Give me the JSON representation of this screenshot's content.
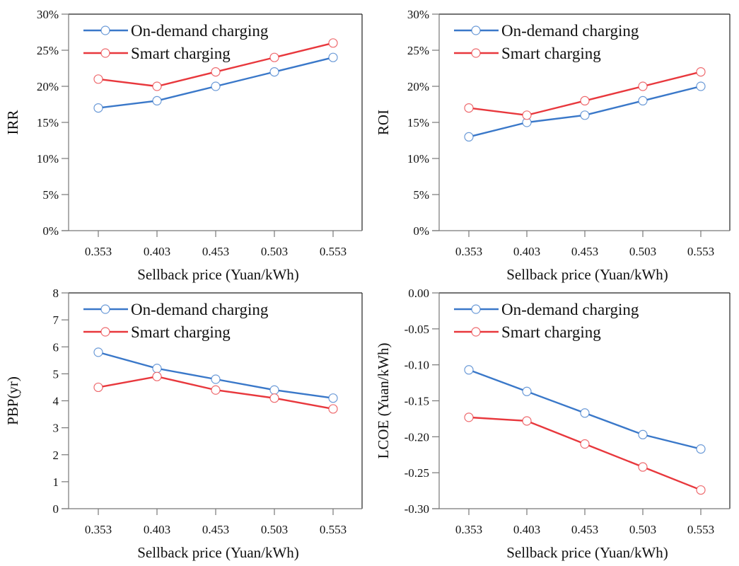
{
  "chart_data": [
    {
      "type": "line",
      "id": "irr",
      "title": "",
      "xlabel": "Sellback price (Yuan/kWh)",
      "ylabel": "IRR",
      "categories": [
        "0.353",
        "0.403",
        "0.453",
        "0.503",
        "0.553"
      ],
      "ylim": [
        0,
        0.3
      ],
      "yticks": [
        0,
        0.05,
        0.1,
        0.15,
        0.2,
        0.25,
        0.3
      ],
      "ytick_labels": [
        "0%",
        "5%",
        "10%",
        "15%",
        "20%",
        "25%",
        "30%"
      ],
      "grid": false,
      "legend_position": "top-left",
      "series": [
        {
          "name": "On-demand charging",
          "color": "#3a78c9",
          "values": [
            0.17,
            0.18,
            0.2,
            0.22,
            0.24
          ]
        },
        {
          "name": "Smart charging",
          "color": "#e8383d",
          "values": [
            0.21,
            0.2,
            0.22,
            0.24,
            0.26
          ]
        }
      ]
    },
    {
      "type": "line",
      "id": "roi",
      "title": "",
      "xlabel": "Sellback price (Yuan/kWh)",
      "ylabel": "ROI",
      "categories": [
        "0.353",
        "0.403",
        "0.453",
        "0.503",
        "0.553"
      ],
      "ylim": [
        0,
        0.3
      ],
      "yticks": [
        0,
        0.05,
        0.1,
        0.15,
        0.2,
        0.25,
        0.3
      ],
      "ytick_labels": [
        "0%",
        "5%",
        "10%",
        "15%",
        "20%",
        "25%",
        "30%"
      ],
      "grid": false,
      "legend_position": "top-left",
      "series": [
        {
          "name": "On-demand charging",
          "color": "#3a78c9",
          "values": [
            0.13,
            0.15,
            0.16,
            0.18,
            0.2
          ]
        },
        {
          "name": "Smart charging",
          "color": "#e8383d",
          "values": [
            0.17,
            0.16,
            0.18,
            0.2,
            0.22
          ]
        }
      ]
    },
    {
      "type": "line",
      "id": "pbp",
      "title": "",
      "xlabel": "Sellback price (Yuan/kWh)",
      "ylabel": "PBP(yr)",
      "categories": [
        "0.353",
        "0.403",
        "0.453",
        "0.503",
        "0.553"
      ],
      "ylim": [
        0,
        8
      ],
      "yticks": [
        0,
        1,
        2,
        3,
        4,
        5,
        6,
        7,
        8
      ],
      "ytick_labels": [
        "0",
        "1",
        "2",
        "3",
        "4",
        "5",
        "6",
        "7",
        "8"
      ],
      "grid": false,
      "legend_position": "top-left",
      "series": [
        {
          "name": "On-demand charging",
          "color": "#3a78c9",
          "values": [
            5.8,
            5.2,
            4.8,
            4.4,
            4.1
          ]
        },
        {
          "name": "Smart charging",
          "color": "#e8383d",
          "values": [
            4.5,
            4.9,
            4.4,
            4.1,
            3.7
          ]
        }
      ]
    },
    {
      "type": "line",
      "id": "lcoe",
      "title": "",
      "xlabel": "Sellback price (Yuan/kWh)",
      "ylabel": "LCOE (Yuan/kWh)",
      "categories": [
        "0.353",
        "0.403",
        "0.453",
        "0.503",
        "0.553"
      ],
      "ylim": [
        -0.3,
        0.0
      ],
      "yticks": [
        -0.3,
        -0.25,
        -0.2,
        -0.15,
        -0.1,
        -0.05,
        0.0
      ],
      "ytick_labels": [
        "-0.30",
        "-0.25",
        "-0.20",
        "-0.15",
        "-0.10",
        "-0.05",
        "0.00"
      ],
      "grid": false,
      "legend_position": "top-left",
      "series": [
        {
          "name": "On-demand charging",
          "color": "#3a78c9",
          "values": [
            -0.107,
            -0.137,
            -0.167,
            -0.197,
            -0.217
          ]
        },
        {
          "name": "Smart charging",
          "color": "#e8383d",
          "values": [
            -0.173,
            -0.178,
            -0.21,
            -0.242,
            -0.274
          ]
        }
      ]
    }
  ]
}
